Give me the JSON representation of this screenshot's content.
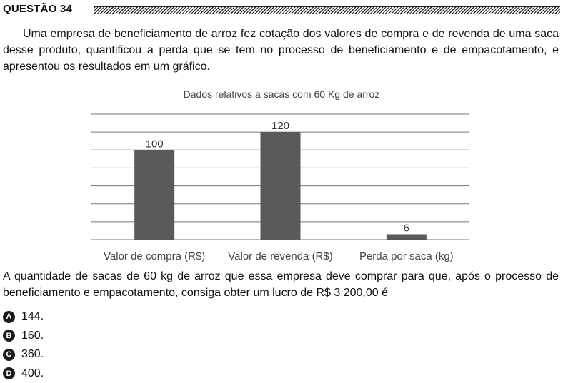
{
  "header": {
    "title": "QUESTÃO 34"
  },
  "intro": "Uma empresa de beneficiamento de arroz fez cotação dos valores de compra e de revenda de uma saca desse produto, quantificou a perda que se tem no processo de beneficiamento e de empacotamento, e apresentou os resultados em um gráfico.",
  "chart_data": {
    "type": "bar",
    "title": "Dados relativos a sacas com 60 Kg de arroz",
    "categories": [
      "Valor de compra (R$)",
      "Valor de revenda (R$)",
      "Perda por saca (kg)"
    ],
    "values": [
      100,
      120,
      6
    ],
    "ylim": [
      0,
      140
    ],
    "grid": true,
    "data_labels": true,
    "bar_color": "#5a5a5a"
  },
  "question": "A quantidade de sacas de 60 kg de arroz que essa empresa deve comprar para que, após o processo de beneficiamento e empacotamento, consiga obter um lucro de R$ 3 200,00 é",
  "options": [
    {
      "letter": "A",
      "text": "144."
    },
    {
      "letter": "B",
      "text": "160."
    },
    {
      "letter": "C",
      "text": "360."
    },
    {
      "letter": "D",
      "text": "400."
    }
  ]
}
